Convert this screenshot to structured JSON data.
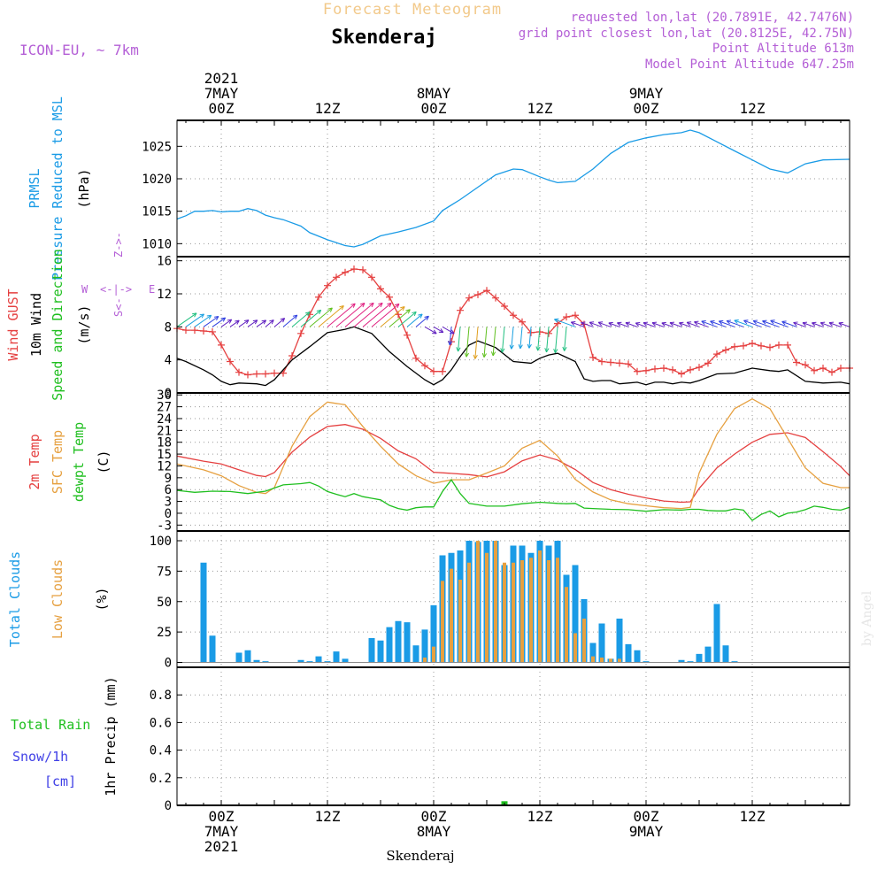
{
  "header": {
    "product_title": "Forecast Meteogram",
    "location": "Skenderaj",
    "model": "ICON-EU, ~ 7km",
    "requested": "requested lon,lat (20.7891E, 42.7476N)",
    "grid_point": "grid point closest lon,lat (20.8125E, 42.75N)",
    "point_altitude": "Point Altitude 613m",
    "model_altitude": "Model Point Altitude 647.25m",
    "watermark": "by Angel",
    "footer_location": "Skenderaj"
  },
  "time_axis": {
    "top_labels": [
      {
        "h": 0,
        "lines": [
          "2021",
          "7MAY",
          "00Z"
        ]
      },
      {
        "h": 12,
        "lines": [
          "12Z"
        ]
      },
      {
        "h": 24,
        "lines": [
          "8MAY",
          "00Z"
        ]
      },
      {
        "h": 36,
        "lines": [
          "12Z"
        ]
      },
      {
        "h": 48,
        "lines": [
          "9MAY",
          "00Z"
        ]
      },
      {
        "h": 60,
        "lines": [
          "12Z"
        ]
      }
    ],
    "bottom_labels": [
      {
        "h": 0,
        "lines": [
          "00Z",
          "7MAY",
          "2021"
        ]
      },
      {
        "h": 12,
        "lines": [
          "12Z"
        ]
      },
      {
        "h": 24,
        "lines": [
          "00Z",
          "8MAY"
        ]
      },
      {
        "h": 36,
        "lines": [
          "12Z"
        ]
      },
      {
        "h": 48,
        "lines": [
          "00Z",
          "9MAY"
        ]
      },
      {
        "h": 60,
        "lines": [
          "12Z"
        ]
      }
    ],
    "range_hours": [
      -5,
      71
    ]
  },
  "chart_data": [
    {
      "type": "line",
      "panel": "pressure",
      "title": "PRMSL Pressure Reduced to MSL",
      "labels": [
        {
          "text": "PRMSL",
          "color": "#1a9be6"
        },
        {
          "text": "Pressure Reduced to MSL",
          "color": "#1a9be6"
        }
      ],
      "ylabel": "(hPa)",
      "ylim": [
        1008,
        1029
      ],
      "yticks": [
        1010,
        1015,
        1020,
        1025
      ],
      "series": [
        {
          "name": "PRMSL",
          "color": "#1a9be6",
          "x": [
            -5,
            -4,
            -3,
            -2,
            -1,
            0,
            1,
            2,
            3,
            4,
            5,
            6,
            7,
            9,
            10,
            12,
            14,
            15,
            16,
            18,
            20,
            22,
            24,
            25,
            27,
            29,
            31,
            33,
            34,
            36,
            37,
            38,
            40,
            42,
            44,
            46,
            48,
            50,
            52,
            53,
            54,
            56,
            58,
            60,
            62,
            64,
            66,
            68,
            71
          ],
          "values": [
            1013.8,
            1014.3,
            1015,
            1015,
            1015.1,
            1014.9,
            1015,
            1015,
            1015.4,
            1015.1,
            1014.4,
            1014,
            1013.7,
            1012.7,
            1011.7,
            1010.6,
            1009.7,
            1009.5,
            1009.9,
            1011.2,
            1011.8,
            1012.5,
            1013.5,
            1015.1,
            1016.8,
            1018.7,
            1020.6,
            1021.5,
            1021.4,
            1020.3,
            1019.8,
            1019.4,
            1019.6,
            1021.5,
            1023.9,
            1025.6,
            1026.3,
            1026.8,
            1027.1,
            1027.5,
            1027.1,
            1025.7,
            1024.3,
            1022.9,
            1021.5,
            1020.9,
            1022.3,
            1022.9,
            1023
          ]
        }
      ]
    },
    {
      "type": "line",
      "panel": "wind",
      "title": "Wind GUST / 10m Wind Speed and Direction",
      "labels": [
        {
          "text": "Wind GUST",
          "color": "#e54040"
        },
        {
          "text": "10m Wind",
          "color": "#000000"
        },
        {
          "text": "Speed and Direction",
          "color": "#1fbf1f"
        }
      ],
      "ylabel": "(m/s)",
      "ylim": [
        0,
        16.5
      ],
      "yticks": [
        0,
        4,
        8,
        12,
        16
      ],
      "compass": "N / W <-|-> E / S",
      "series": [
        {
          "name": "Wind GUST",
          "color": "#e54040",
          "marker": "+",
          "x": [
            -5,
            -4,
            -3,
            -2,
            -1,
            0,
            1,
            2,
            3,
            4,
            5,
            6,
            7,
            8,
            9,
            10,
            11,
            12,
            13,
            14,
            15,
            16,
            17,
            18,
            19,
            20,
            21,
            22,
            23,
            24,
            25,
            26,
            27,
            28,
            29,
            30,
            31,
            32,
            33,
            34,
            35,
            36,
            37,
            38,
            39,
            40,
            41,
            42,
            43,
            44,
            45,
            46,
            47,
            48,
            49,
            50,
            51,
            52,
            53,
            54,
            55,
            56,
            57,
            58,
            59,
            60,
            61,
            62,
            63,
            64,
            65,
            66,
            67,
            68,
            69,
            70,
            71
          ],
          "values": [
            7.8,
            7.6,
            7.6,
            7.5,
            7.4,
            5.8,
            3.8,
            2.5,
            2.2,
            2.3,
            2.3,
            2.4,
            2.4,
            4.5,
            7.2,
            9.5,
            11.6,
            13,
            14,
            14.6,
            15,
            14.9,
            14,
            12.6,
            11.6,
            9.5,
            7,
            4.2,
            3.3,
            2.6,
            2.6,
            6.2,
            10,
            11.5,
            11.9,
            12.4,
            11.5,
            10.5,
            9.4,
            8.6,
            7.3,
            7.4,
            7.2,
            8.4,
            9.2,
            9.4,
            8.3,
            4.3,
            3.8,
            3.7,
            3.6,
            3.5,
            2.6,
            2.7,
            2.9,
            3.0,
            2.8,
            2.3,
            2.8,
            3.1,
            3.6,
            4.7,
            5.2,
            5.6,
            5.7,
            6.0,
            5.7,
            5.5,
            5.8,
            5.8,
            3.7,
            3.4,
            2.7,
            3.0,
            2.5,
            3.0,
            3.0
          ]
        },
        {
          "name": "10m Wind",
          "color": "#000000",
          "x": [
            -5,
            -4,
            -2,
            -1,
            0,
            1,
            2,
            4,
            5,
            6,
            8,
            10,
            12,
            14,
            15,
            17,
            19,
            21,
            23,
            24,
            25,
            26,
            27,
            28,
            29,
            31,
            33,
            35,
            36,
            37,
            38,
            40,
            41,
            42,
            43,
            44,
            45,
            46,
            47,
            48,
            49,
            50,
            51,
            52,
            53,
            54,
            56,
            58,
            60,
            62,
            63,
            64,
            66,
            68,
            70,
            71
          ],
          "values": [
            4.2,
            3.8,
            2.8,
            2.2,
            1.4,
            1.0,
            1.2,
            1.1,
            0.9,
            1.6,
            4.0,
            5.6,
            7.3,
            7.7,
            8.0,
            7.2,
            5.0,
            3.2,
            1.6,
            1.0,
            1.6,
            2.8,
            4.4,
            5.8,
            6.3,
            5.5,
            3.8,
            3.6,
            4.2,
            4.6,
            4.8,
            3.8,
            1.7,
            1.4,
            1.5,
            1.5,
            1.1,
            1.2,
            1.3,
            1.0,
            1.3,
            1.3,
            1.1,
            1.3,
            1.2,
            1.5,
            2.3,
            2.4,
            3.0,
            2.7,
            2.6,
            2.8,
            1.4,
            1.2,
            1.3,
            1.1
          ]
        }
      ]
    },
    {
      "type": "line",
      "panel": "temperature",
      "title": "2m Temp / SFC Temp / dewpt Temp",
      "labels": [
        {
          "text": "2m Temp",
          "color": "#e54040"
        },
        {
          "text": "SFC Temp",
          "color": "#e6a040"
        },
        {
          "text": "dewpt Temp",
          "color": "#1fbf1f"
        }
      ],
      "ylabel": "(C)",
      "ylim": [
        -4.5,
        30.5
      ],
      "yticks": [
        -3,
        0,
        3,
        6,
        9,
        12,
        15,
        18,
        21,
        24,
        27,
        30
      ],
      "series": [
        {
          "name": "2m Temp",
          "color": "#e54040",
          "x": [
            -5,
            -2,
            0,
            2,
            4,
            5,
            6,
            8,
            10,
            12,
            14,
            16,
            18,
            20,
            22,
            24,
            26,
            28,
            30,
            32,
            34,
            36,
            38,
            40,
            42,
            44,
            46,
            48,
            50,
            52,
            53,
            54,
            56,
            58,
            60,
            62,
            64,
            66,
            68,
            70,
            71
          ],
          "values": [
            14.5,
            13.2,
            12.5,
            11,
            9.6,
            9.3,
            10.3,
            15.5,
            19.3,
            22,
            22.5,
            21.3,
            19,
            15.8,
            13.8,
            10.4,
            10.1,
            9.8,
            9.2,
            10.5,
            13.3,
            14.8,
            13.5,
            11.1,
            7.8,
            6.0,
            4.8,
            3.9,
            3.1,
            2.8,
            2.9,
            6.3,
            11.5,
            15,
            18,
            20,
            20.4,
            19.2,
            15.6,
            11.8,
            9.5
          ]
        },
        {
          "name": "SFC Temp",
          "color": "#e6a040",
          "x": [
            -5,
            -2,
            0,
            2,
            4,
            5,
            6,
            8,
            10,
            12,
            14,
            16,
            18,
            20,
            22,
            24,
            26,
            28,
            30,
            32,
            34,
            36,
            38,
            40,
            42,
            44,
            46,
            48,
            50,
            52,
            53,
            54,
            56,
            58,
            60,
            62,
            64,
            66,
            68,
            70,
            71
          ],
          "values": [
            12.5,
            11,
            9.5,
            7,
            5.3,
            5.0,
            6.5,
            17,
            24.5,
            28.2,
            27.5,
            22,
            17,
            12.5,
            9.5,
            7.6,
            8.5,
            8.5,
            10.2,
            12.0,
            16.5,
            18.5,
            14.5,
            8.6,
            5.4,
            3.4,
            2.4,
            1.9,
            1.4,
            1.2,
            1.5,
            10.2,
            20,
            26.5,
            29,
            26.5,
            19,
            11.5,
            7.6,
            6.5,
            6.5
          ]
        },
        {
          "name": "dewpt Temp",
          "color": "#1fbf1f",
          "x": [
            -5,
            -3,
            -1,
            1,
            3,
            5,
            7,
            9,
            10,
            11,
            12,
            13,
            14,
            15,
            16,
            17,
            18,
            19,
            20,
            21,
            22,
            23,
            24,
            25,
            26,
            27,
            28,
            30,
            32,
            34,
            36,
            38,
            39,
            40,
            41,
            42,
            44,
            46,
            48,
            50,
            52,
            53,
            54,
            55,
            56,
            57,
            58,
            59,
            60,
            61,
            62,
            63,
            64,
            65,
            66,
            67,
            68,
            69,
            70,
            71
          ],
          "values": [
            5.8,
            5.3,
            5.6,
            5.5,
            5.0,
            5.6,
            7.2,
            7.5,
            7.8,
            6.9,
            5.5,
            4.8,
            4.2,
            5.0,
            4.2,
            3.8,
            3.4,
            2.0,
            1.2,
            0.8,
            1.4,
            1.6,
            1.6,
            5.5,
            8.5,
            5.0,
            2.5,
            1.8,
            1.8,
            2.4,
            2.8,
            2.5,
            2.4,
            2.5,
            1.3,
            1.2,
            1.0,
            0.9,
            0.5,
            0.9,
            0.8,
            1.0,
            1.0,
            0.7,
            0.6,
            0.6,
            1.1,
            0.8,
            -1.8,
            -0.3,
            0.6,
            -0.9,
            0.0,
            0.3,
            0.9,
            1.8,
            1.5,
            1.0,
            0.8,
            1.5
          ]
        }
      ]
    },
    {
      "type": "bar",
      "panel": "clouds",
      "title": "Total Clouds / Low Clouds",
      "labels": [
        {
          "text": "Total Clouds",
          "color": "#1a9be6"
        },
        {
          "text": "Low Clouds",
          "color": "#e6a040"
        }
      ],
      "ylabel": "(%)",
      "ylim": [
        -4,
        108
      ],
      "yticks": [
        0,
        25,
        50,
        75,
        100
      ],
      "x": [
        -5,
        -4,
        -3,
        -2,
        -1,
        0,
        1,
        2,
        3,
        4,
        5,
        6,
        7,
        8,
        9,
        10,
        11,
        12,
        13,
        14,
        15,
        16,
        17,
        18,
        19,
        20,
        21,
        22,
        23,
        24,
        25,
        26,
        27,
        28,
        29,
        30,
        31,
        32,
        33,
        34,
        35,
        36,
        37,
        38,
        39,
        40,
        41,
        42,
        43,
        44,
        45,
        46,
        47,
        48,
        49,
        50,
        51,
        52,
        53,
        54,
        55,
        56,
        57,
        58,
        59,
        60,
        61,
        62,
        63,
        64,
        65,
        66,
        67,
        68,
        69,
        70,
        71
      ],
      "series": [
        {
          "name": "Total Clouds",
          "color": "#1a9be6",
          "values": [
            0,
            0,
            0,
            82,
            22,
            0,
            0,
            8,
            10,
            2,
            1,
            0,
            0,
            0,
            2,
            1,
            5,
            1,
            9,
            3,
            0,
            0,
            20,
            18,
            29,
            34,
            33,
            14,
            27,
            47,
            88,
            90,
            92,
            100,
            99,
            100,
            100,
            80,
            96,
            96,
            90,
            100,
            96,
            100,
            72,
            80,
            52,
            16,
            32,
            3,
            36,
            15,
            10,
            1,
            0,
            0,
            0,
            2,
            1,
            7,
            13,
            48,
            14,
            1,
            0,
            0,
            0,
            0,
            0,
            0,
            0,
            0,
            0,
            0,
            0,
            0,
            0
          ]
        },
        {
          "name": "Low Clouds",
          "color": "#e6a040",
          "values": [
            0,
            0,
            0,
            0,
            0,
            0,
            0,
            0,
            0,
            0,
            0,
            0,
            0,
            0,
            0,
            0,
            0,
            0,
            0,
            0,
            0,
            0,
            0,
            0,
            0,
            0,
            0,
            0,
            4,
            13,
            67,
            77,
            68,
            82,
            100,
            90,
            100,
            82,
            82,
            84,
            86,
            92,
            84,
            86,
            62,
            24,
            36,
            5,
            4,
            3,
            3,
            0,
            0,
            0,
            0,
            0,
            0,
            0,
            0,
            0,
            0,
            0,
            0,
            0,
            0,
            0,
            0,
            0,
            0,
            0,
            0,
            0,
            0,
            0,
            0,
            0,
            0
          ]
        }
      ]
    },
    {
      "type": "bar",
      "panel": "precip",
      "title": "1hr Precip (mm)",
      "labels": [
        {
          "text": "Total Rain",
          "color": "#1fbf1f"
        },
        {
          "text": "Snow/1h",
          "color": "#4040e6"
        },
        {
          "text": "[cm]",
          "color": "#4040e6"
        }
      ],
      "ylabel": "1hr Precip (mm)",
      "ylim": [
        0,
        1.0
      ],
      "yticks": [
        0,
        0.2,
        0.4,
        0.6,
        0.8
      ],
      "x": [
        31,
        32
      ],
      "series": [
        {
          "name": "Total Rain",
          "color": "#1fbf1f",
          "values": [
            0.005,
            0.03
          ]
        }
      ]
    }
  ]
}
